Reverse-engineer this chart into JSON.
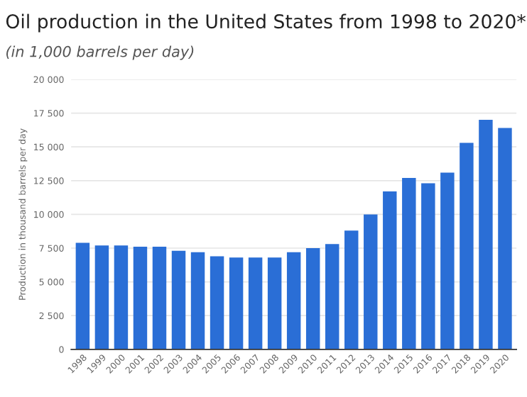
{
  "chart_data": {
    "type": "bar",
    "title": "Oil production in the United States from 1998 to 2020*",
    "subtitle": "(in 1,000 barrels per day)",
    "ylabel": "Production in thousand barrels per day",
    "categories": [
      "1998",
      "1999",
      "2000",
      "2001",
      "2002",
      "2003",
      "2004",
      "2005",
      "2006",
      "2007",
      "2008",
      "2009",
      "2010",
      "2011",
      "2012",
      "2013",
      "2014",
      "2015",
      "2016",
      "2017",
      "2018",
      "2019",
      "2020"
    ],
    "values": [
      7900,
      7700,
      7700,
      7600,
      7600,
      7300,
      7200,
      6900,
      6800,
      6800,
      6800,
      7200,
      7500,
      7800,
      8800,
      10000,
      11700,
      12700,
      12300,
      13100,
      15300,
      17000,
      16400
    ],
    "color": "#2a6ed6",
    "ylim": [
      0,
      20000
    ],
    "yticks": [
      {
        "value": 0,
        "label": "0"
      },
      {
        "value": 2500,
        "label": "2 500"
      },
      {
        "value": 5000,
        "label": "5 000"
      },
      {
        "value": 7500,
        "label": "7 500"
      },
      {
        "value": 10000,
        "label": "10 000"
      },
      {
        "value": 12500,
        "label": "12 500"
      },
      {
        "value": 15000,
        "label": "15 000"
      },
      {
        "value": 17500,
        "label": "17 500"
      },
      {
        "value": 20000,
        "label": "20 000"
      }
    ],
    "grid": "y"
  }
}
